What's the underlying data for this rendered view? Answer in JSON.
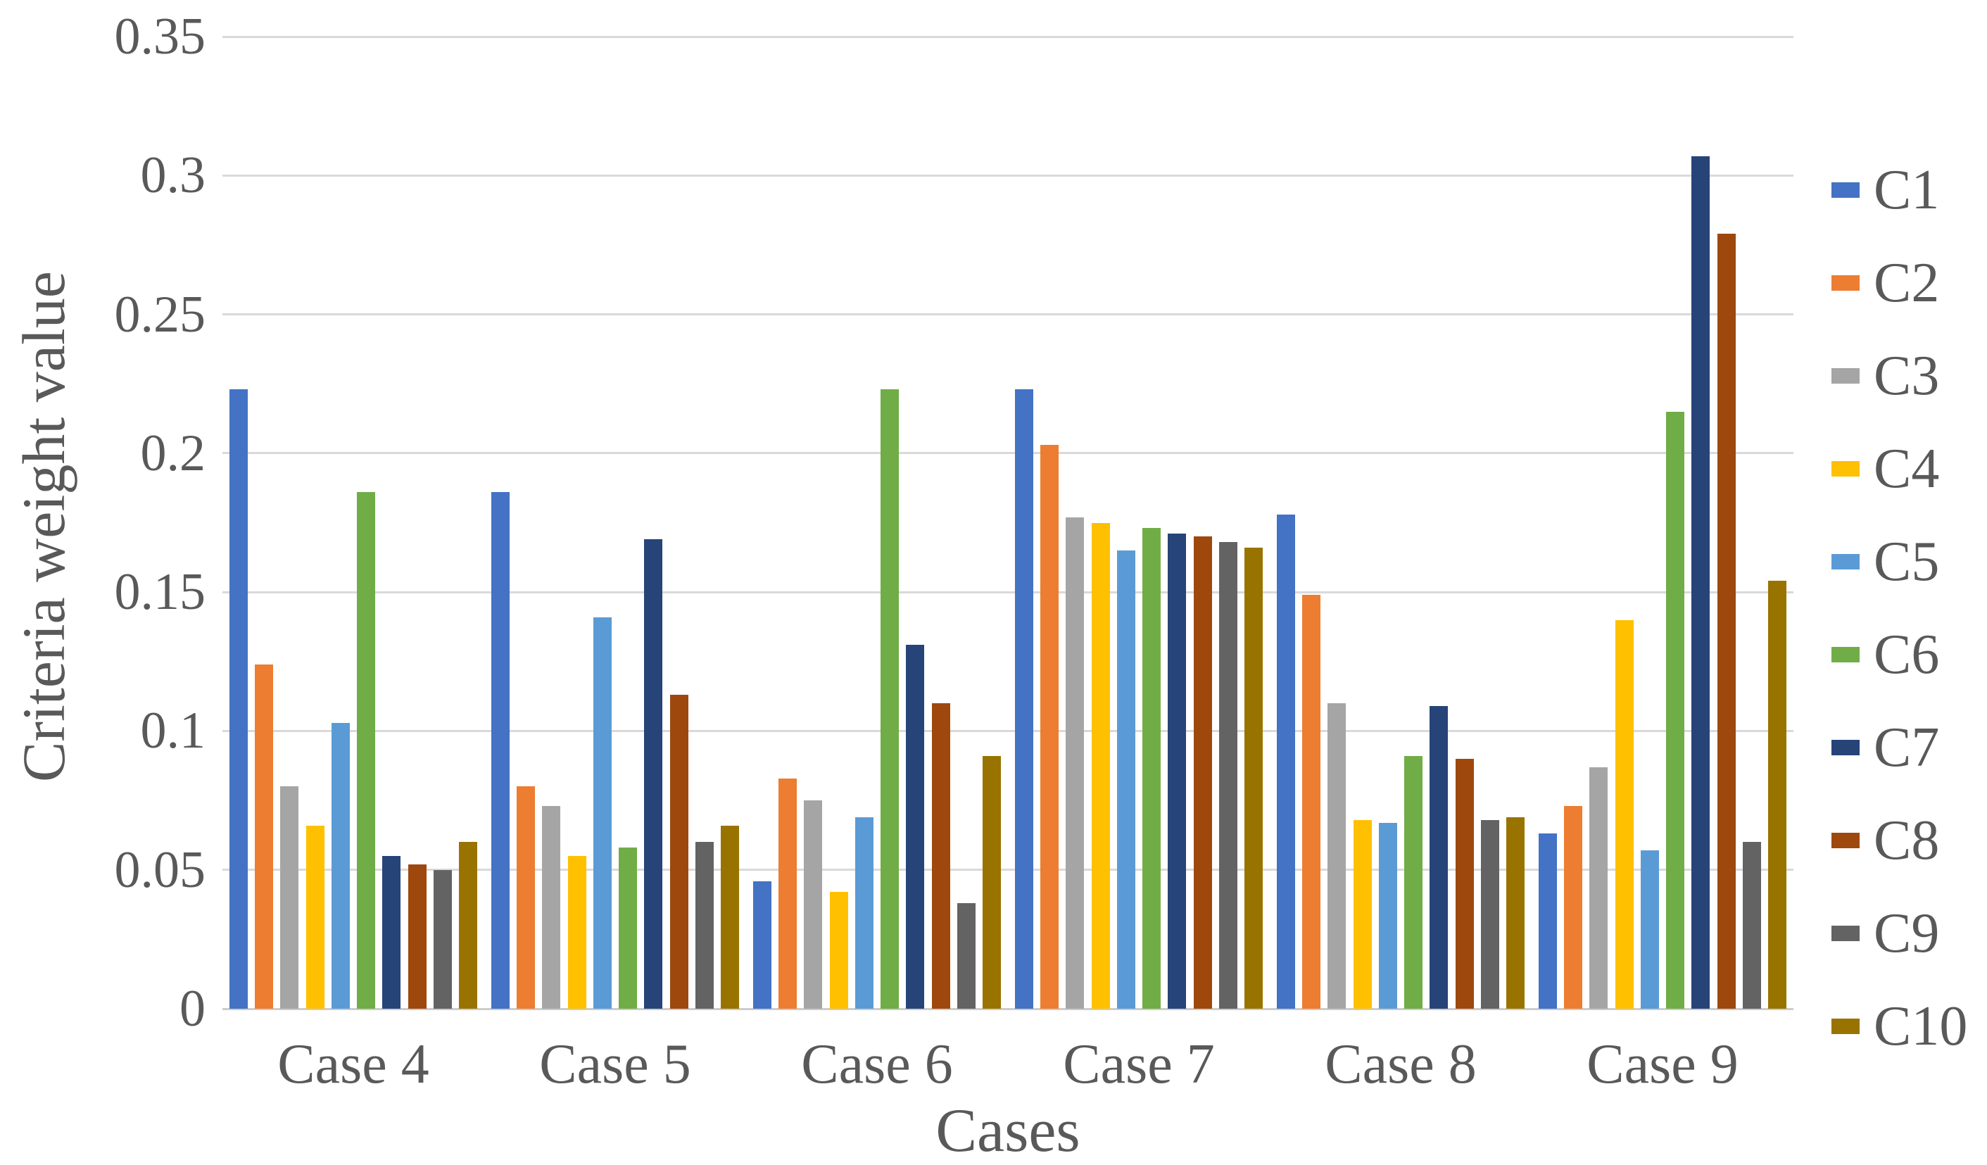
{
  "text_color": "#595959",
  "gridline_color": "#D9D9D9",
  "chart_data": {
    "type": "bar",
    "title": "",
    "xlabel": "Cases",
    "ylabel": "Criteria weight value",
    "grid": true,
    "legend_position": "right",
    "ylim": [
      0,
      0.35
    ],
    "y_tick_step": 0.05,
    "y_tick_labels": [
      "0",
      "0.05",
      "0.1",
      "0.15",
      "0.2",
      "0.25",
      "0.3",
      "0.35"
    ],
    "categories": [
      "Case 4",
      "Case 5",
      "Case 6",
      "Case 7",
      "Case 8",
      "Case 9"
    ],
    "series": [
      {
        "name": "C1",
        "color": "#4472C4",
        "values": [
          0.223,
          0.186,
          0.046,
          0.223,
          0.178,
          0.063
        ]
      },
      {
        "name": "C2",
        "color": "#ED7D31",
        "values": [
          0.124,
          0.08,
          0.083,
          0.203,
          0.149,
          0.073
        ]
      },
      {
        "name": "C3",
        "color": "#A5A5A5",
        "values": [
          0.08,
          0.073,
          0.075,
          0.177,
          0.11,
          0.087
        ]
      },
      {
        "name": "C4",
        "color": "#FFC000",
        "values": [
          0.066,
          0.055,
          0.042,
          0.175,
          0.068,
          0.14
        ]
      },
      {
        "name": "C5",
        "color": "#5B9BD5",
        "values": [
          0.103,
          0.141,
          0.069,
          0.165,
          0.067,
          0.057
        ]
      },
      {
        "name": "C6",
        "color": "#70AD47",
        "values": [
          0.186,
          0.058,
          0.223,
          0.173,
          0.091,
          0.215
        ]
      },
      {
        "name": "C7",
        "color": "#264478",
        "values": [
          0.055,
          0.169,
          0.131,
          0.171,
          0.109,
          0.307
        ]
      },
      {
        "name": "C8",
        "color": "#9E480E",
        "values": [
          0.052,
          0.113,
          0.11,
          0.17,
          0.09,
          0.279
        ]
      },
      {
        "name": "C9",
        "color": "#636363",
        "values": [
          0.05,
          0.06,
          0.038,
          0.168,
          0.068,
          0.06
        ]
      },
      {
        "name": "C10",
        "color": "#997300",
        "values": [
          0.06,
          0.066,
          0.091,
          0.166,
          0.069,
          0.154
        ]
      }
    ]
  }
}
